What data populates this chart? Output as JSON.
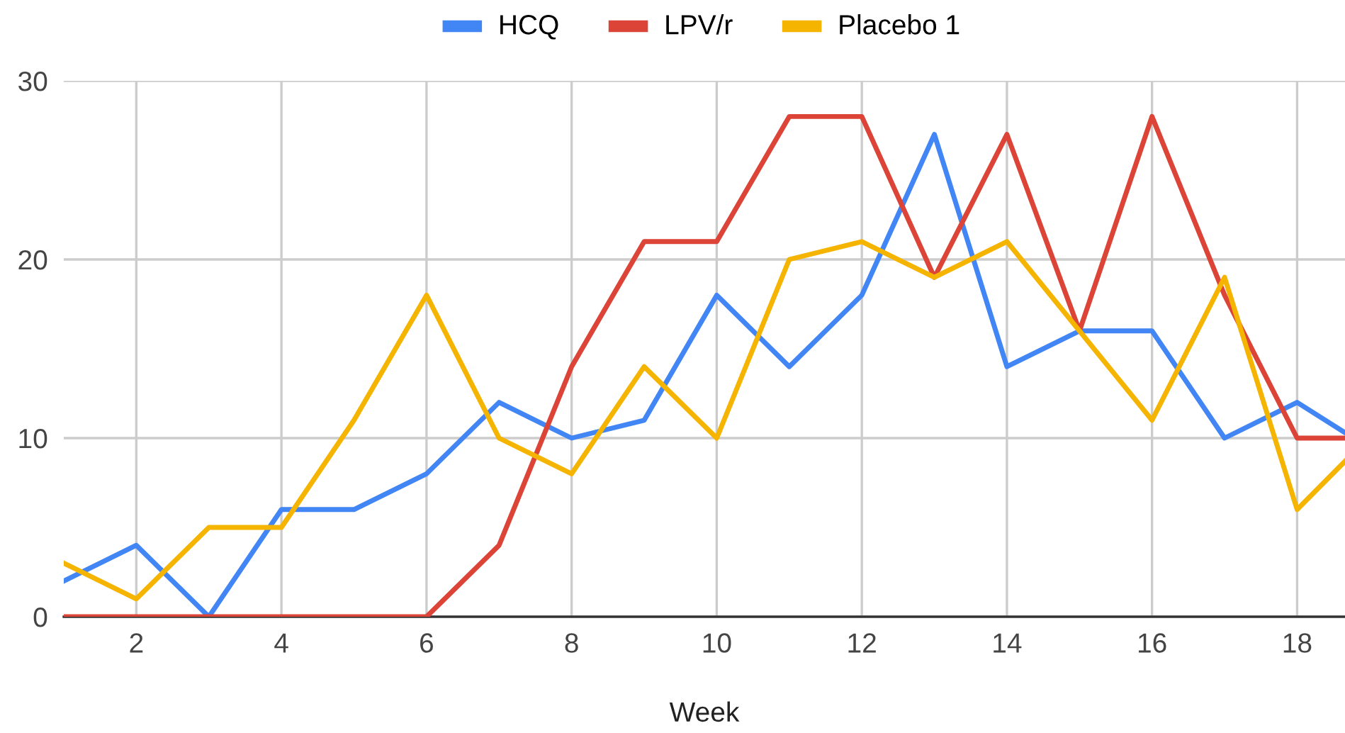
{
  "chart_data": {
    "type": "line",
    "xlabel": "Week",
    "x": [
      1,
      2,
      3,
      4,
      5,
      6,
      7,
      8,
      9,
      10,
      11,
      12,
      13,
      14,
      15,
      16,
      17,
      18,
      18.66
    ],
    "series": [
      {
        "name": "HCQ",
        "color": "#4285f4",
        "values": [
          2,
          4,
          0,
          6,
          6,
          8,
          12,
          10,
          11,
          18,
          14,
          18,
          27,
          14,
          16,
          16,
          10,
          12,
          10.3
        ]
      },
      {
        "name": "LPV/r",
        "color": "#db4437",
        "values": [
          0,
          0,
          0,
          0,
          0,
          0,
          4,
          14,
          21,
          21,
          28,
          28,
          19,
          27,
          16,
          28,
          18,
          10,
          10
        ]
      },
      {
        "name": "Placebo 1",
        "color": "#f4b400",
        "values": [
          3,
          1,
          5,
          5,
          11,
          18,
          10,
          8,
          14,
          10,
          20,
          21,
          19,
          21,
          16,
          11,
          19,
          6,
          8.7
        ]
      }
    ],
    "xlim": [
      1,
      18.66
    ],
    "xticks": [
      2,
      4,
      6,
      8,
      10,
      12,
      14,
      16,
      18
    ],
    "ylim": [
      0,
      30
    ],
    "yticks": [
      0,
      10,
      20,
      30
    ],
    "grid": true,
    "legend": "top",
    "marker": "none",
    "line_style": "solid"
  }
}
